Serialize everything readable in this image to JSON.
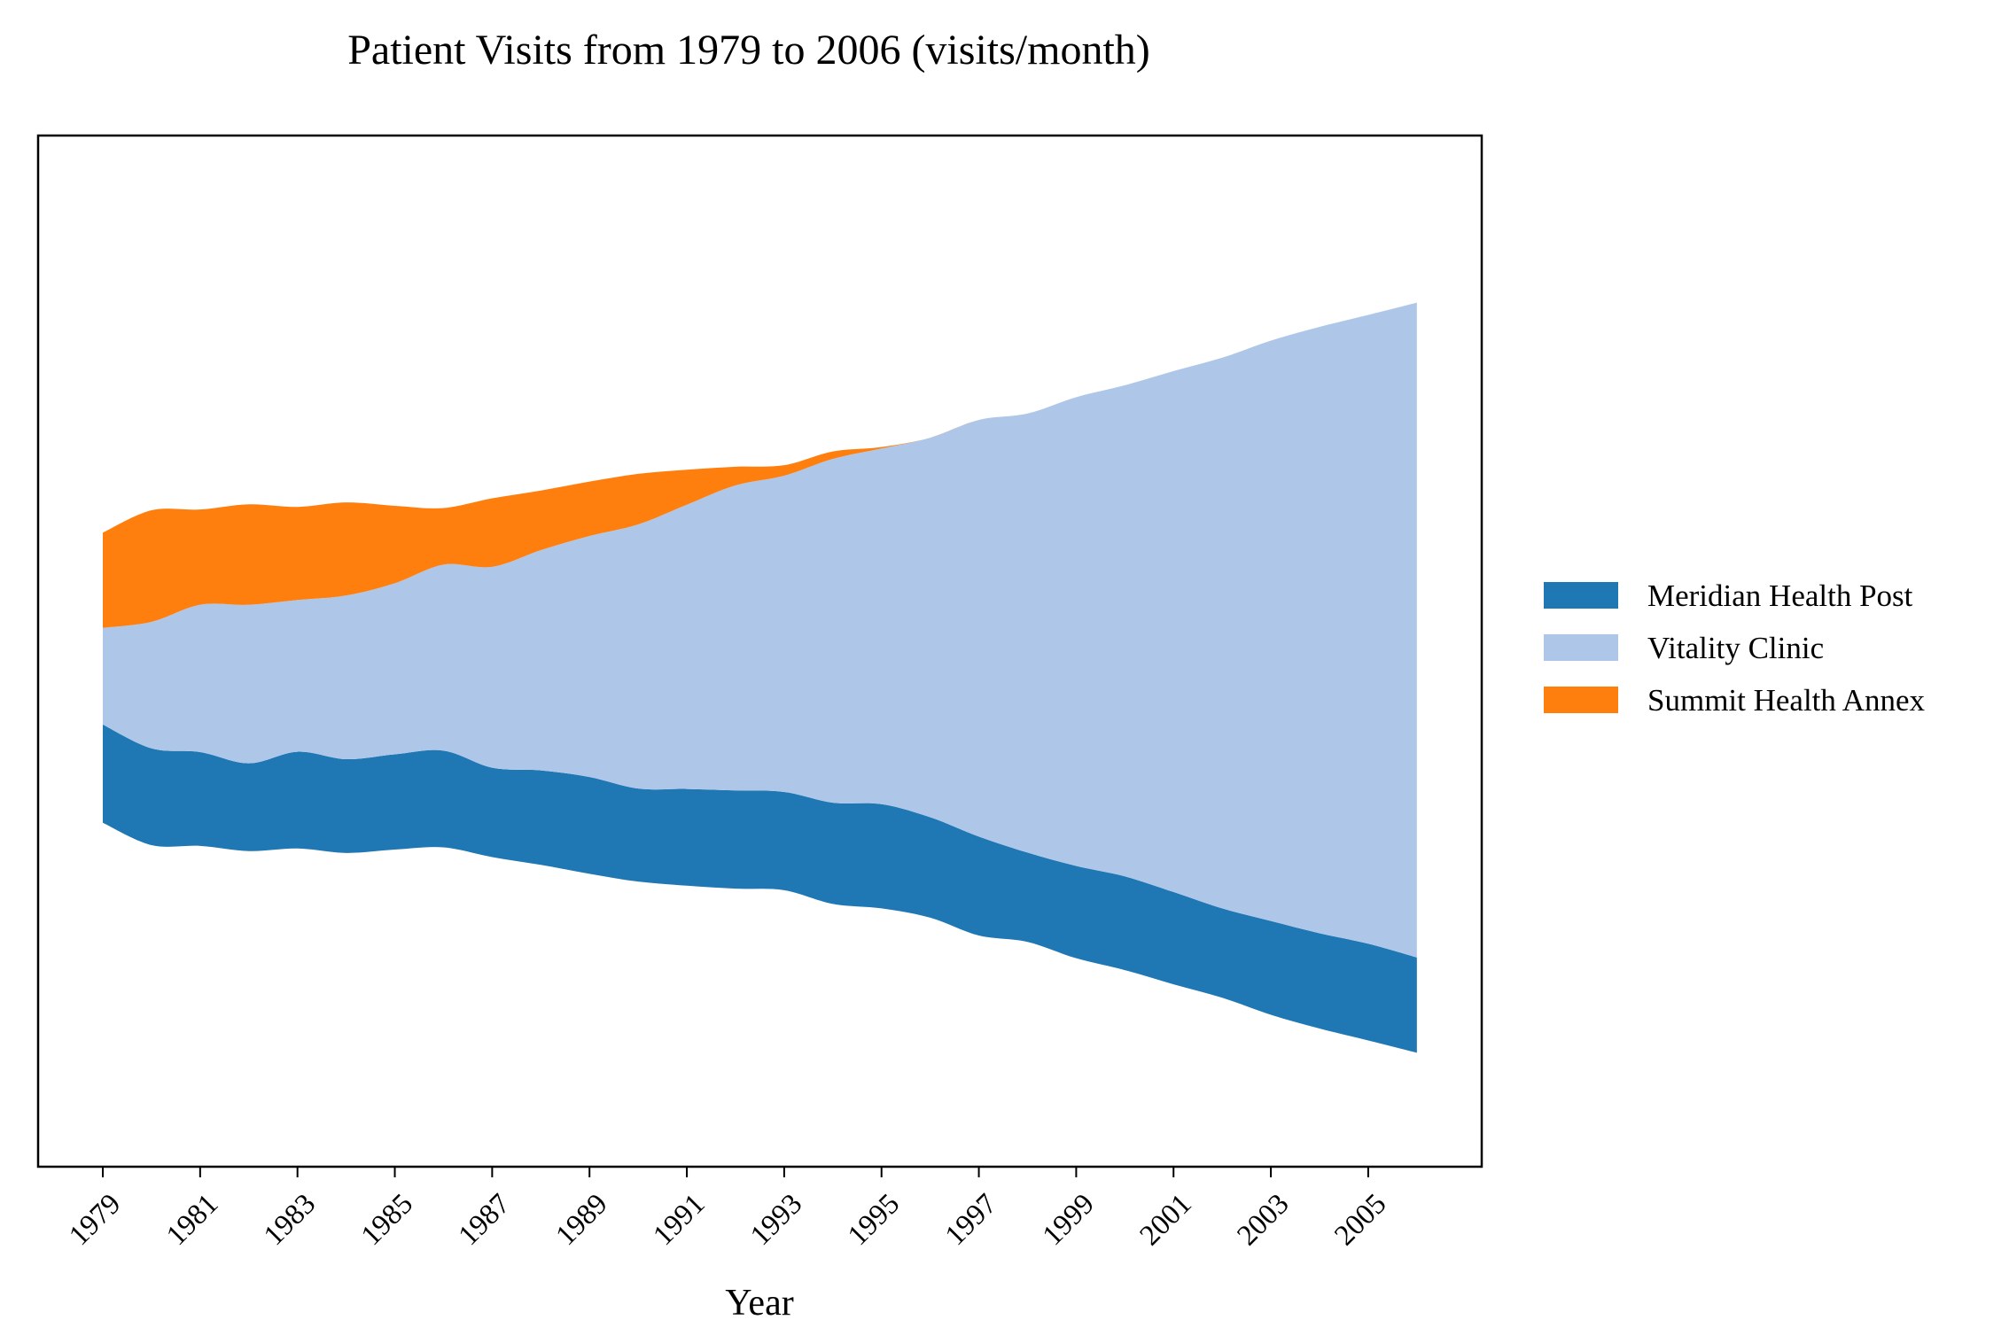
{
  "chart_data": {
    "type": "area",
    "subtype": "streamgraph",
    "title": "Patient Visits from 1979 to 2006 (visits/month)",
    "xlabel": "Year",
    "ylabel": "",
    "x": [
      1979,
      1980,
      1981,
      1982,
      1983,
      1984,
      1985,
      1986,
      1987,
      1988,
      1989,
      1990,
      1991,
      1992,
      1993,
      1994,
      1995,
      1996,
      1997,
      1998,
      1999,
      2000,
      2001,
      2002,
      2003,
      2004,
      2005,
      2006
    ],
    "xticks": [
      "1979",
      "1981",
      "1983",
      "1985",
      "1987",
      "1989",
      "1991",
      "1993",
      "1995",
      "1997",
      "1999",
      "2001",
      "2003",
      "2005"
    ],
    "yaxis_visible": false,
    "grid": false,
    "legend_position": "right",
    "series": [
      {
        "name": "Meridian Health Post",
        "color": "#1f77b4",
        "values": [
          132,
          130,
          126,
          118,
          130,
          126,
          128,
          130,
          120,
          127,
          130,
          125,
          130,
          132,
          132,
          136,
          140,
          135,
          133,
          120,
          124,
          126,
          124,
          120,
          126,
          128,
          130,
          128
        ]
      },
      {
        "name": "Vitality Clinic",
        "color": "#aec7e8",
        "values": [
          130,
          170,
          198,
          213,
          204,
          220,
          230,
          250,
          270,
          296,
          324,
          355,
          382,
          410,
          425,
          462,
          478,
          510,
          560,
          590,
          630,
          660,
          700,
          740,
          780,
          815,
          845,
          880
        ]
      },
      {
        "name": "Summit Health Annex",
        "color": "#ff7f0e",
        "values": [
          128,
          150,
          128,
          135,
          125,
          125,
          104,
          76,
          92,
          80,
          73,
          68,
          47,
          25,
          14,
          10,
          2,
          0,
          0,
          0,
          0,
          0,
          0,
          0,
          0,
          0,
          0,
          0
        ]
      }
    ]
  }
}
